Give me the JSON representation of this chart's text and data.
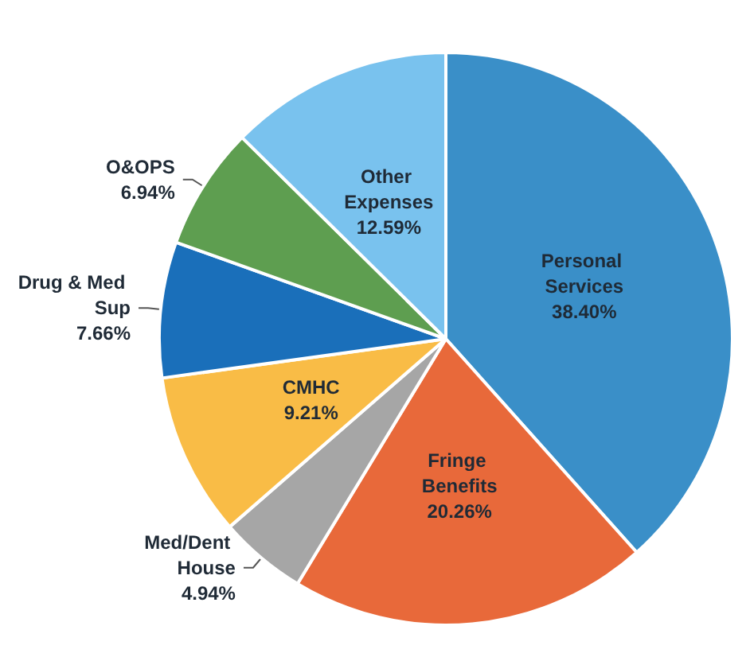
{
  "chart_data": {
    "type": "pie",
    "categories": [
      "Personal Services",
      "Fringe Benefits",
      "Med/Dent House",
      "CMHC",
      "Drug & Med Sup",
      "O&OPS",
      "Other Expenses"
    ],
    "values": [
      38.4,
      20.26,
      4.94,
      9.21,
      7.66,
      6.94,
      12.59
    ],
    "value_labels": [
      "38.40%",
      "20.26%",
      "4.94%",
      "9.21%",
      "7.66%",
      "6.94%",
      "12.59%"
    ],
    "colors": [
      "#3a8fc8",
      "#e8693a",
      "#a6a6a6",
      "#f9bc46",
      "#1a6fba",
      "#5e9e50",
      "#79c2ee"
    ],
    "legend": false
  }
}
